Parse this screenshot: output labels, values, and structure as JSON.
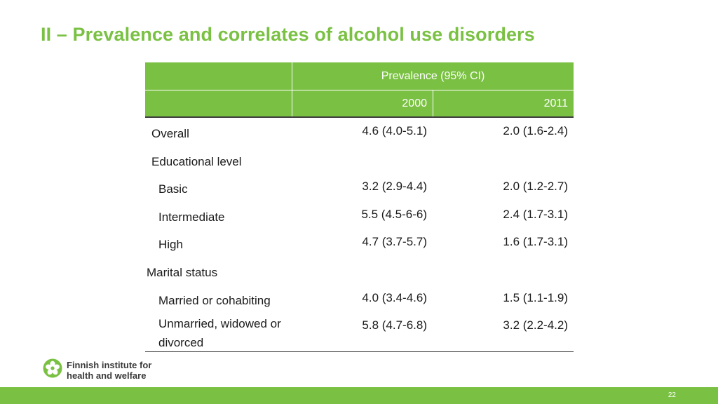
{
  "title": "II – Prevalence and correlates of alcohol use disorders",
  "table": {
    "group_header": "Prevalence (95% CI)",
    "col_2000": "2000",
    "col_2011": "2011",
    "rows": [
      {
        "label": "Overall",
        "v2000": "4.6 (4.0-5.1)",
        "v2011": "2.0 (1.6-2.4)"
      },
      {
        "label": "Educational level",
        "v2000": "",
        "v2011": ""
      },
      {
        "label": "Basic",
        "v2000": "3.2 (2.9-4.4)",
        "v2011": "2.0 (1.2-2.7)"
      },
      {
        "label": "Intermediate",
        "v2000": "5.5 (4.5-6-6)",
        "v2011": "2.4 (1.7-3.1)"
      },
      {
        "label": "High",
        "v2000": "4.7 (3.7-5.7)",
        "v2011": "1.6 (1.7-3.1)"
      },
      {
        "label": "Marital status",
        "v2000": "",
        "v2011": ""
      },
      {
        "label": "Married or cohabiting",
        "v2000": "4.0 (3.4-4.6)",
        "v2011": "1.5 (1.1-1.9)"
      },
      {
        "label": "Unmarried, widowed or divorced",
        "v2000": "5.8 (4.7-6.8)",
        "v2011": "3.2 (2.2-4.2)"
      }
    ]
  },
  "logo": {
    "line1": "Finnish institute for",
    "line2": "health and welfare"
  },
  "page_number": "22",
  "colors": {
    "accent": "#7ac143"
  },
  "icons": {
    "logo_mark": "flower-logo-icon"
  }
}
